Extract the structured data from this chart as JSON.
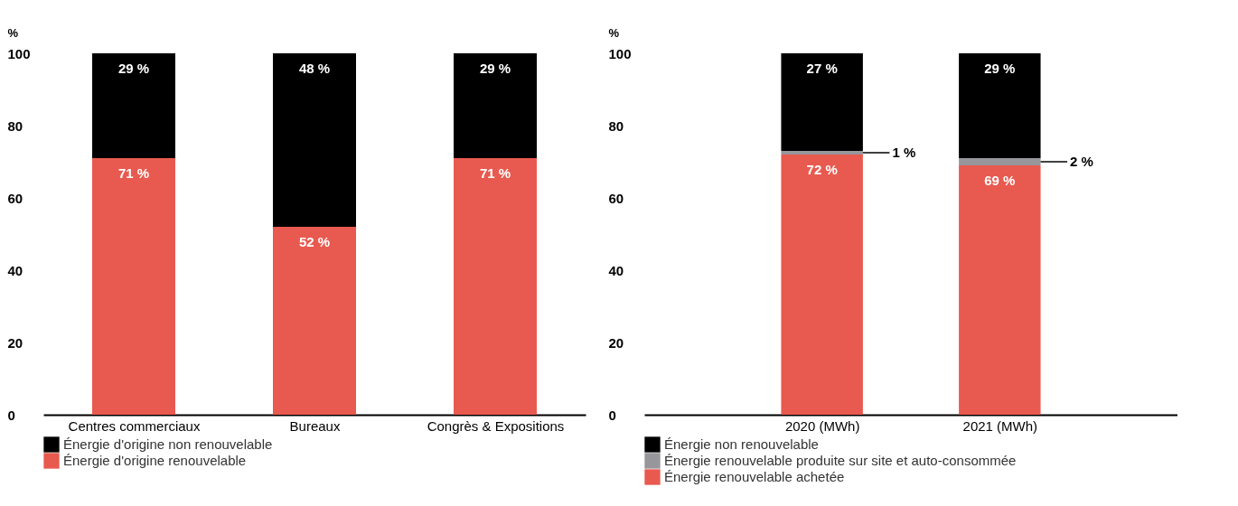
{
  "chart_data": [
    {
      "type": "bar",
      "stacked": true,
      "ylabel": "%",
      "categories": [
        "Centres commerciaux",
        "Bureaux",
        "Congrès & Expositions"
      ],
      "ylim": [
        0,
        100
      ],
      "yticks": [
        0,
        20,
        40,
        60,
        80,
        100
      ],
      "grid": false,
      "legend": "bottom left",
      "series": [
        {
          "name": "Énergie d'origine renouvelable",
          "color": "#e85a4f",
          "values": [
            71,
            52,
            71
          ],
          "value_labels": [
            "71 %",
            "52 %",
            "71 %"
          ]
        },
        {
          "name": "Énergie d'origine non renouvelable",
          "color": "#000000",
          "values": [
            29,
            48,
            29
          ],
          "value_labels": [
            "29 %",
            "48 %",
            "29 %"
          ]
        }
      ]
    },
    {
      "type": "bar",
      "stacked": true,
      "ylabel": "%",
      "categories": [
        "2020 (MWh)",
        "2021 (MWh)"
      ],
      "ylim": [
        0,
        100
      ],
      "yticks": [
        0,
        20,
        40,
        60,
        80,
        100
      ],
      "grid": false,
      "legend": "bottom left",
      "series": [
        {
          "name": "Énergie renouvelable achetée",
          "color": "#e85a4f",
          "values": [
            72,
            69
          ],
          "value_labels": [
            "72 %",
            "69 %"
          ]
        },
        {
          "name": "Énergie renouvelable produite sur site et auto-consommée",
          "color": "#96969b",
          "values": [
            1,
            2
          ],
          "value_labels": [
            "1 %",
            "2 %"
          ]
        },
        {
          "name": "Énergie non renouvelable",
          "color": "#000000",
          "values": [
            27,
            29
          ],
          "value_labels": [
            "27 %",
            "29 %"
          ]
        }
      ]
    }
  ]
}
